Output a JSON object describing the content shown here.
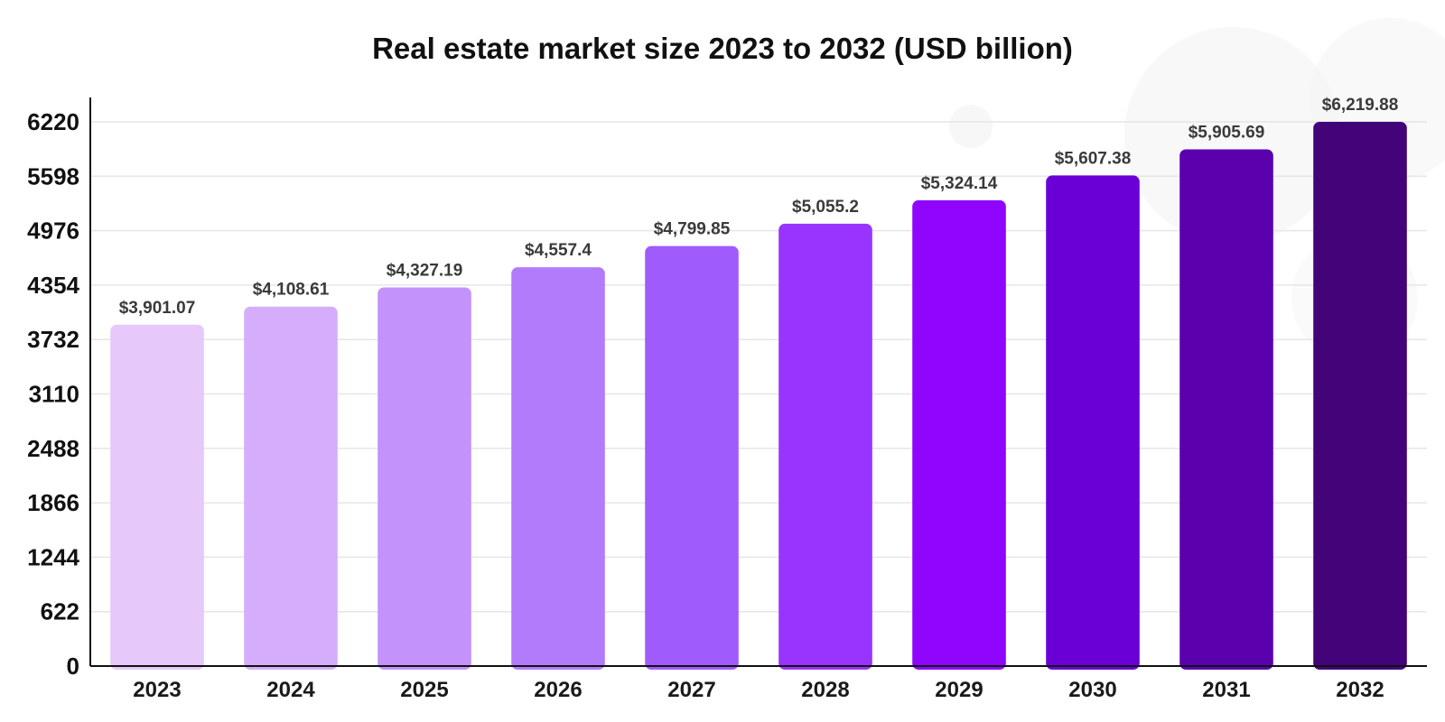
{
  "chart_data": {
    "type": "bar",
    "title": "Real estate market size 2023 to 2032 (USD billion)",
    "xlabel": "",
    "ylabel": "",
    "categories": [
      "2023",
      "2024",
      "2025",
      "2026",
      "2027",
      "2028",
      "2029",
      "2030",
      "2031",
      "2032"
    ],
    "values": [
      3901.07,
      4108.61,
      4327.19,
      4557.4,
      4799.85,
      5055.2,
      5324.14,
      5607.38,
      5905.69,
      6219.88
    ],
    "data_labels": [
      "$3,901.07",
      "$4,108.61",
      "$4,327.19",
      "$4,557.4",
      "$4,799.85",
      "$5,055.2",
      "$5,324.14",
      "$5,607.38",
      "$5,905.69",
      "$6,219.88"
    ],
    "y_ticks": [
      "0",
      "622",
      "1244",
      "1866",
      "2488",
      "3110",
      "3732",
      "4354",
      "4976",
      "5598",
      "6220"
    ],
    "ylim": [
      0,
      6220
    ],
    "grid": true,
    "legend": "none",
    "bar_colors": [
      "#e6c8fb",
      "#d4aefc",
      "#c492fb",
      "#b27bfc",
      "#a05bfd",
      "#9933fe",
      "#8f05fd",
      "#6b00d6",
      "#5a00ad",
      "#420478"
    ]
  }
}
